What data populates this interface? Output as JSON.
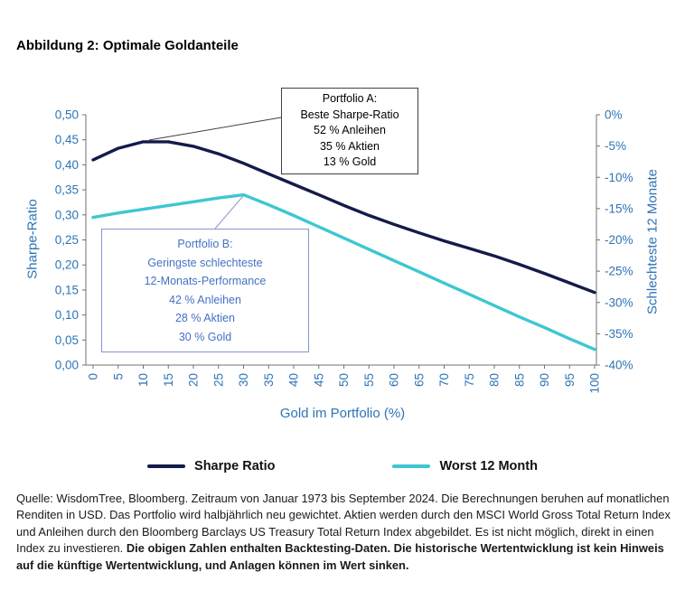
{
  "chart_data": {
    "type": "line",
    "title": "Abbildung 2: Optimale Goldanteile",
    "xlabel": "Gold im Portfolio (%)",
    "ylabel_left": "Sharpe-Ratio",
    "ylabel_right": "Schlechteste 12 Monate",
    "x": [
      0,
      5,
      10,
      15,
      20,
      25,
      30,
      35,
      40,
      45,
      50,
      55,
      60,
      65,
      70,
      75,
      80,
      85,
      90,
      95,
      100
    ],
    "ylim_left": [
      0,
      0.5
    ],
    "ylim_right": [
      -40,
      0
    ],
    "y_left_ticks": [
      "0,00",
      "0,05",
      "0,10",
      "0,15",
      "0,20",
      "0,25",
      "0,30",
      "0,35",
      "0,40",
      "0,45",
      "0,50"
    ],
    "y_right_ticks": [
      "0%",
      "-5%",
      "-10%",
      "-15%",
      "-20%",
      "-25%",
      "-30%",
      "-35%",
      "-40%"
    ],
    "grid": false,
    "legend_position": "bottom",
    "series": [
      {
        "name": "Sharpe Ratio",
        "axis": "left",
        "color": "#131B4A",
        "values": [
          0.41,
          0.433,
          0.446,
          0.446,
          0.437,
          0.422,
          0.403,
          0.382,
          0.361,
          0.34,
          0.319,
          0.299,
          0.281,
          0.264,
          0.248,
          0.233,
          0.218,
          0.201,
          0.183,
          0.164,
          0.145
        ]
      },
      {
        "name": "Worst 12 Month",
        "axis": "right",
        "color": "#3DC7D2",
        "values": [
          -16.4,
          -15.7,
          -15.1,
          -14.5,
          -13.9,
          -13.3,
          -12.8,
          -14.4,
          -16.1,
          -17.9,
          -19.7,
          -21.5,
          -23.3,
          -25.1,
          -26.9,
          -28.7,
          -30.5,
          -32.3,
          -34.0,
          -35.8,
          -37.5
        ]
      }
    ],
    "annotations": [
      {
        "id": "portfolio-a",
        "color": "#000000",
        "lines": [
          "Portfolio A:",
          "Beste Sharpe-Ratio",
          "52 % Anleihen",
          "35 % Aktien",
          "13 % Gold"
        ]
      },
      {
        "id": "portfolio-b",
        "color": "#4472C4",
        "lines": [
          "Portfolio B:",
          "Geringste schlechteste",
          "12-Monats-Performance",
          "42 % Anleihen",
          "28 % Aktien",
          "30 % Gold"
        ]
      }
    ]
  },
  "footer": {
    "normal": "Quelle: WisdomTree, Bloomberg. Zeitraum von Januar 1973 bis September 2024. Die Berechnungen beruhen auf monatlichen Renditen in USD. Das Portfolio wird halbjährlich neu gewichtet. Aktien werden durch den MSCI World Gross Total Return Index und Anleihen durch den Bloomberg Barclays US Treasury Total Return Index abgebildet. Es ist nicht möglich, direkt in einen Index zu investieren. ",
    "bold": "Die obigen Zahlen enthalten Backtesting-Daten. Die historische Wertentwicklung ist kein Hinweis auf die künftige Wertentwicklung, und Anlagen können im Wert sinken."
  },
  "colors": {
    "axis_text": "#2E74B5",
    "axis_line": "#707070",
    "annotation_b_border": "#8496CB"
  }
}
